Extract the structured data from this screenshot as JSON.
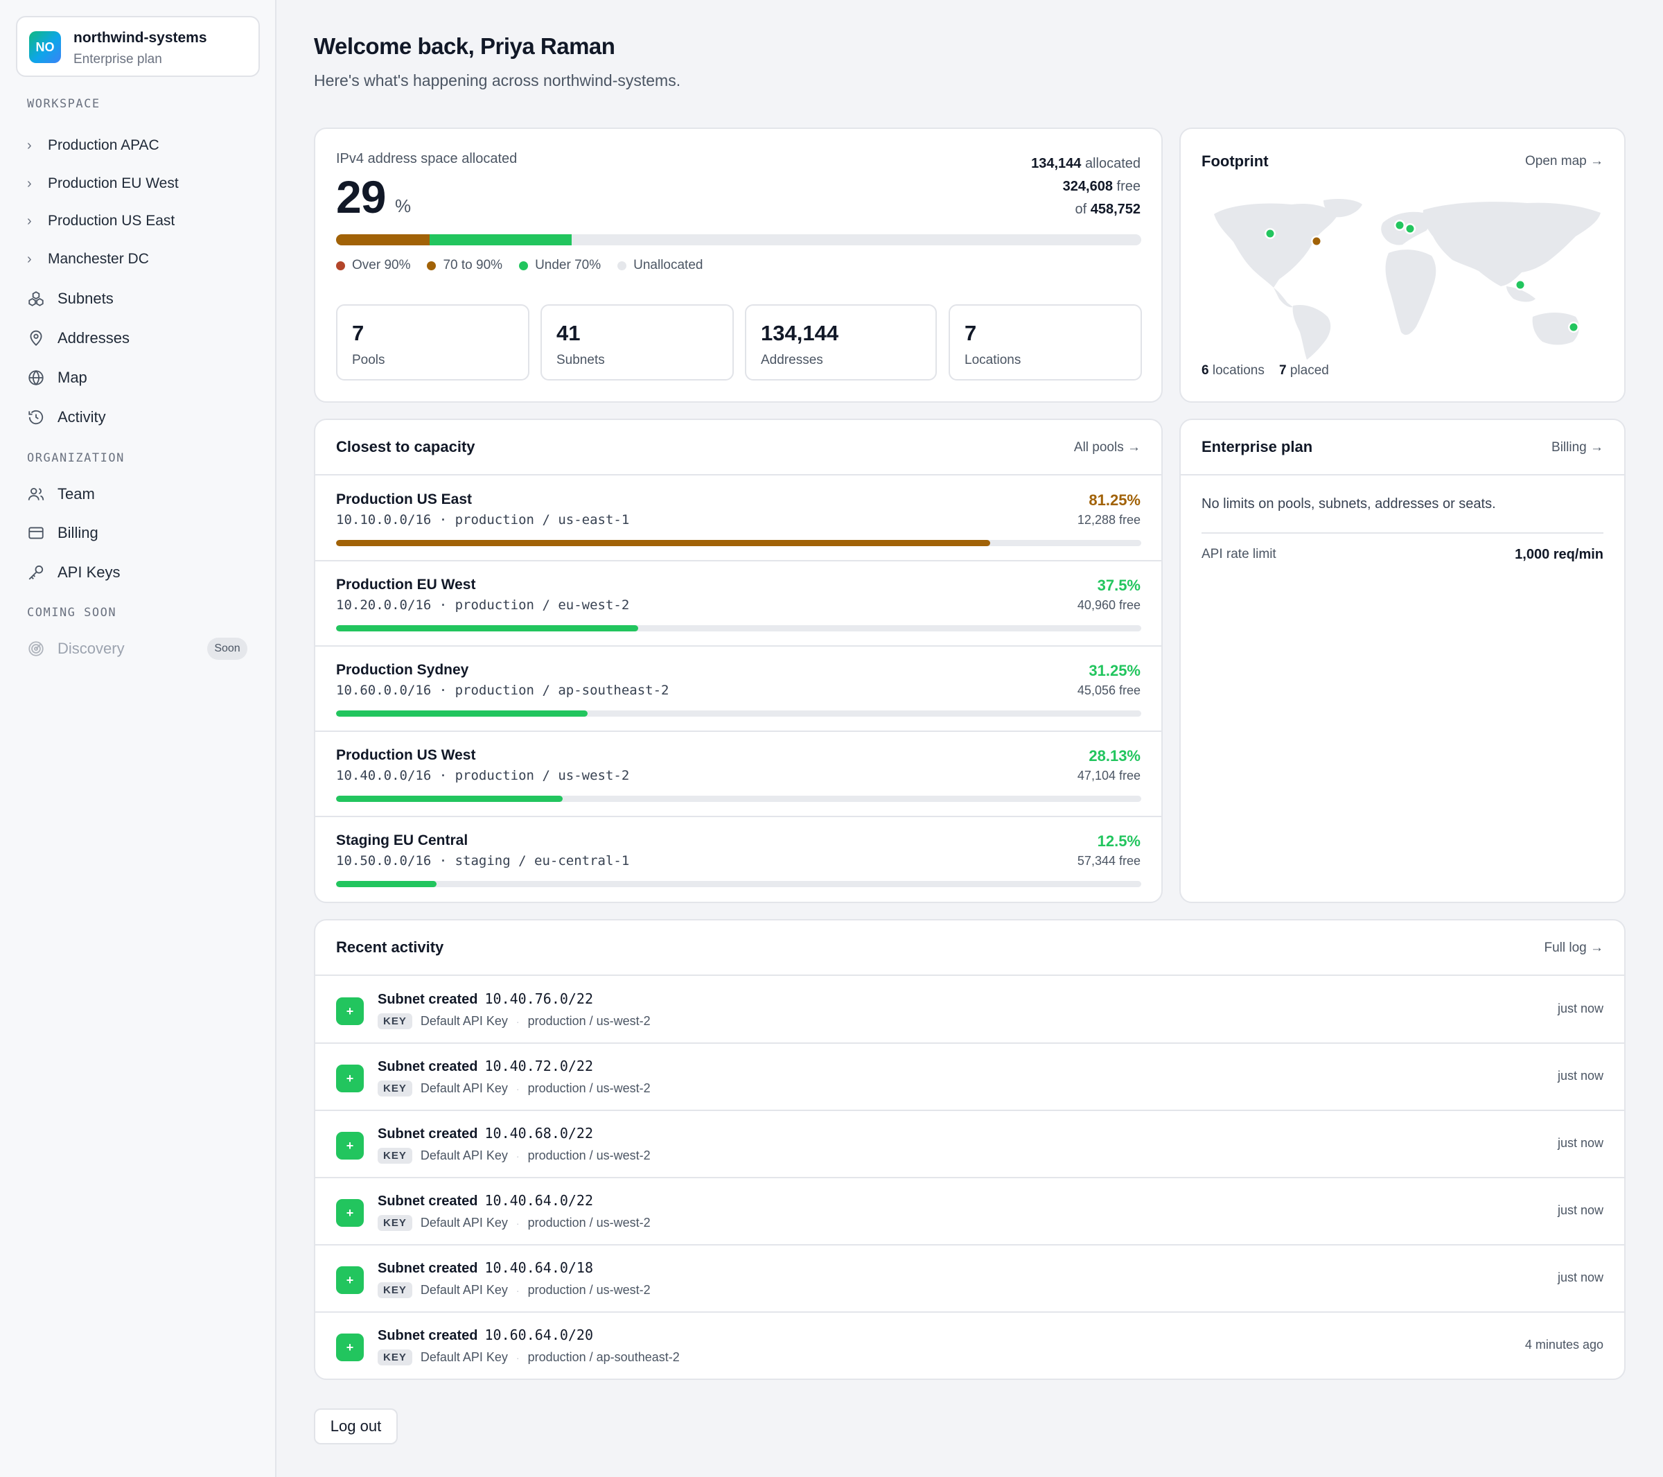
{
  "org": {
    "initials": "NO",
    "name": "northwind-systems",
    "plan": "Enterprise plan"
  },
  "sidebar": {
    "workspace_label": "WORKSPACE",
    "workspace_items": [
      "Production APAC",
      "Production EU West",
      "Production US East",
      "Manchester DC"
    ],
    "nav": [
      {
        "label": "Subnets",
        "icon": "subnets-icon"
      },
      {
        "label": "Addresses",
        "icon": "map-pin-icon"
      },
      {
        "label": "Map",
        "icon": "globe-icon"
      },
      {
        "label": "Activity",
        "icon": "history-icon"
      }
    ],
    "organization_label": "ORGANIZATION",
    "org_nav": [
      {
        "label": "Team",
        "icon": "users-icon"
      },
      {
        "label": "Billing",
        "icon": "credit-card-icon"
      },
      {
        "label": "API Keys",
        "icon": "key-icon"
      }
    ],
    "coming_soon_label": "COMING SOON",
    "discovery": {
      "label": "Discovery",
      "badge": "Soon",
      "icon": "radar-icon"
    }
  },
  "header": {
    "title": "Welcome back, Priya Raman",
    "subtitle": "Here's what's happening across northwind-systems."
  },
  "ipv4": {
    "label": "IPv4 address space allocated",
    "percent": "29",
    "percent_symbol": "%",
    "allocated": "134,144",
    "allocated_suffix": "allocated",
    "free": "324,608",
    "free_suffix": "free",
    "total_prefix": "of",
    "total": "458,752",
    "bar": {
      "over90": 0,
      "between70_90": 0.1161,
      "under70": 0.1763
    },
    "legend": [
      "Over 90%",
      "70 to 90%",
      "Under 70%",
      "Unallocated"
    ],
    "colors": {
      "over90": "#b45309",
      "between70_90": "#a16207",
      "under70": "#22c55e",
      "unallocated": "#e5e7eb",
      "over90_dot": "#b3452a"
    }
  },
  "stats": [
    {
      "value": "7",
      "label": "Pools"
    },
    {
      "value": "41",
      "label": "Subnets"
    },
    {
      "value": "134,144",
      "label": "Addresses"
    },
    {
      "value": "7",
      "label": "Locations"
    }
  ],
  "footprint": {
    "title": "Footprint",
    "link": "Open map →",
    "locations_count": "6",
    "locations_label": "locations",
    "placed_count": "7",
    "placed_label": "placed"
  },
  "capacity": {
    "title": "Closest to capacity",
    "link": "All pools →",
    "rows": [
      {
        "name": "Production US East",
        "cidr": "10.10.0.0/16",
        "env": "production / us-east-1",
        "pct": "81.25%",
        "fill": 0.8125,
        "free": "12,288 free",
        "color": "#a16207"
      },
      {
        "name": "Production EU West",
        "cidr": "10.20.0.0/16",
        "env": "production / eu-west-2",
        "pct": "37.5%",
        "fill": 0.375,
        "free": "40,960 free",
        "color": "#22c55e"
      },
      {
        "name": "Production Sydney",
        "cidr": "10.60.0.0/16",
        "env": "production / ap-southeast-2",
        "pct": "31.25%",
        "fill": 0.3125,
        "free": "45,056 free",
        "color": "#22c55e"
      },
      {
        "name": "Production US West",
        "cidr": "10.40.0.0/16",
        "env": "production / us-west-2",
        "pct": "28.13%",
        "fill": 0.2813,
        "free": "47,104 free",
        "color": "#22c55e"
      },
      {
        "name": "Staging EU Central",
        "cidr": "10.50.0.0/16",
        "env": "staging / eu-central-1",
        "pct": "12.5%",
        "fill": 0.125,
        "free": "57,344 free",
        "color": "#22c55e"
      }
    ]
  },
  "plan": {
    "title": "Enterprise plan",
    "link": "Billing →",
    "description": "No limits on pools, subnets, addresses or seats.",
    "rate_label": "API rate limit",
    "rate_value": "1,000 req/min"
  },
  "activity": {
    "title": "Recent activity",
    "link": "Full log →",
    "rows": [
      {
        "action": "Subnet created",
        "cidr": "10.40.76.0/22",
        "badge": "KEY",
        "actor": "Default API Key",
        "scope": "production / us-west-2",
        "time": "just now"
      },
      {
        "action": "Subnet created",
        "cidr": "10.40.72.0/22",
        "badge": "KEY",
        "actor": "Default API Key",
        "scope": "production / us-west-2",
        "time": "just now"
      },
      {
        "action": "Subnet created",
        "cidr": "10.40.68.0/22",
        "badge": "KEY",
        "actor": "Default API Key",
        "scope": "production / us-west-2",
        "time": "just now"
      },
      {
        "action": "Subnet created",
        "cidr": "10.40.64.0/22",
        "badge": "KEY",
        "actor": "Default API Key",
        "scope": "production / us-west-2",
        "time": "just now"
      },
      {
        "action": "Subnet created",
        "cidr": "10.40.64.0/18",
        "badge": "KEY",
        "actor": "Default API Key",
        "scope": "production / us-west-2",
        "time": "just now"
      },
      {
        "action": "Subnet created",
        "cidr": "10.60.64.0/20",
        "badge": "KEY",
        "actor": "Default API Key",
        "scope": "production / ap-southeast-2",
        "time": "4 minutes ago"
      }
    ]
  },
  "logout_label": "Log out"
}
